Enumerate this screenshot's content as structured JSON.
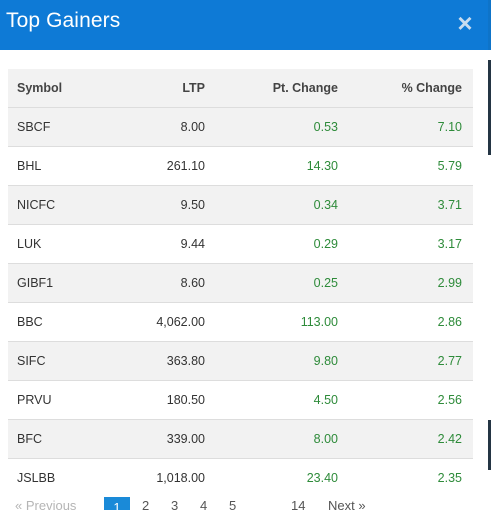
{
  "header": {
    "title": "Top Gainers",
    "close_label": "×"
  },
  "table": {
    "columns": [
      "Symbol",
      "LTP",
      "Pt. Change",
      "% Change"
    ],
    "rows": [
      {
        "symbol": "SBCF",
        "ltp": "8.00",
        "pt_change": "0.53",
        "pct_change": "7.10"
      },
      {
        "symbol": "BHL",
        "ltp": "261.10",
        "pt_change": "14.30",
        "pct_change": "5.79"
      },
      {
        "symbol": "NICFC",
        "ltp": "9.50",
        "pt_change": "0.34",
        "pct_change": "3.71"
      },
      {
        "symbol": "LUK",
        "ltp": "9.44",
        "pt_change": "0.29",
        "pct_change": "3.17"
      },
      {
        "symbol": "GIBF1",
        "ltp": "8.60",
        "pt_change": "0.25",
        "pct_change": "2.99"
      },
      {
        "symbol": "BBC",
        "ltp": "4,062.00",
        "pt_change": "113.00",
        "pct_change": "2.86"
      },
      {
        "symbol": "SIFC",
        "ltp": "363.80",
        "pt_change": "9.80",
        "pct_change": "2.77"
      },
      {
        "symbol": "PRVU",
        "ltp": "180.50",
        "pt_change": "4.50",
        "pct_change": "2.56"
      },
      {
        "symbol": "BFC",
        "ltp": "339.00",
        "pt_change": "8.00",
        "pct_change": "2.42"
      },
      {
        "symbol": "JSLBB",
        "ltp": "1,018.00",
        "pt_change": "23.40",
        "pct_change": "2.35"
      }
    ]
  },
  "pagination": {
    "previous": "« Previous",
    "pages": [
      "1",
      "2",
      "3",
      "4",
      "5",
      "14"
    ],
    "active_page": "1",
    "next": "Next »"
  },
  "colors": {
    "header_bg": "#0e7ad6",
    "positive": "#2e8b3a",
    "active_page_bg": "#1a8ad8"
  }
}
